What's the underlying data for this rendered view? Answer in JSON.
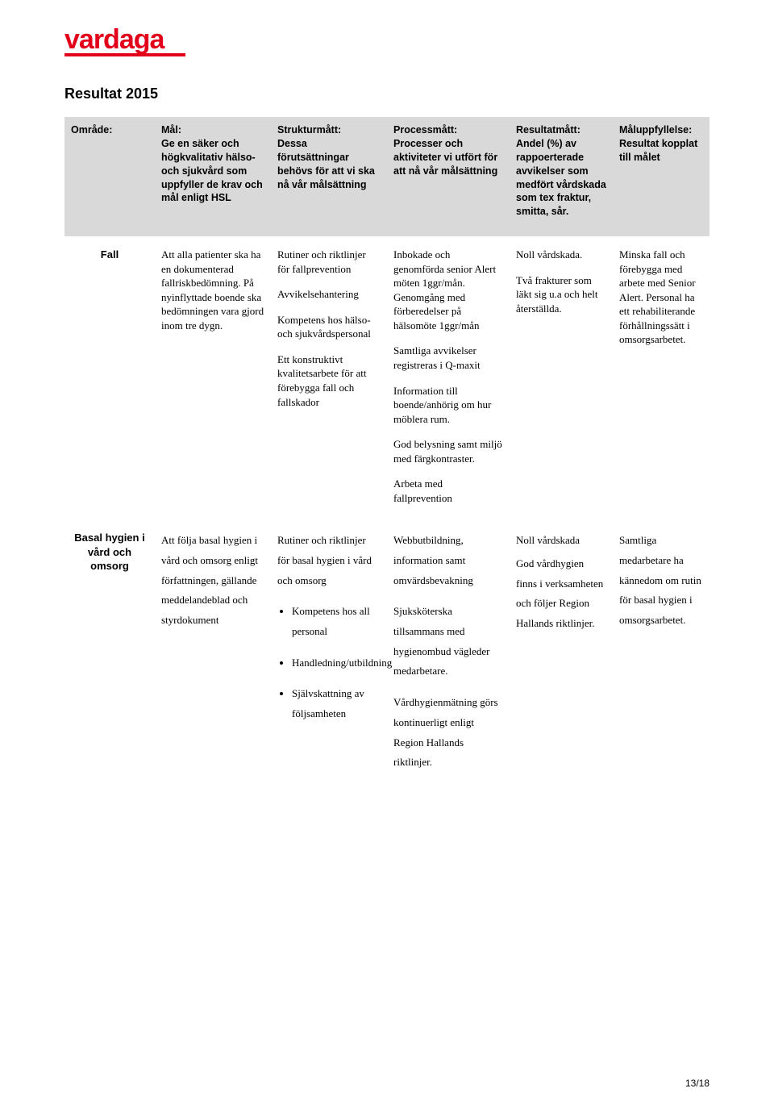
{
  "logo": {
    "text": "vardaga",
    "color": "#e2001a",
    "underline_color": "#e2001a"
  },
  "heading": "Resultat 2015",
  "headers": {
    "area": "Område:",
    "goal": "Mål:\nGe en säker och högkvalitativ hälso- och sjukvård som uppfyller de krav och mål enligt HSL",
    "structure": "Strukturmått:\nDessa förutsättningar behövs för att vi ska nå vår målsättning",
    "process": "Processmått:\nProcesser och aktiviteter vi utfört för att nå vår målsättning",
    "result": "Resultatmått:\nAndel (%) av rappoerterade avvikelser som medfört vårdskada som tex fraktur, smitta, sår.",
    "fulfill": "Måluppfyllelse:\nResultat kopplat till målet"
  },
  "row1": {
    "area": "Fall",
    "goal": "Att alla patienter ska ha en dokumenterad fallriskbedömning. På nyinflyttade boende ska bedömningen vara gjord inom tre dygn.",
    "structure_p1": "Rutiner och riktlinjer för fallprevention",
    "structure_p2": "Avvikelsehantering",
    "structure_p3": "Kompetens hos hälso- och sjukvårdspersonal",
    "structure_p4": "Ett konstruktivt kvalitetsarbete för att förebygga fall och fallskador",
    "process_p1": "Inbokade och genomförda senior Alert möten 1ggr/mån. Genomgång med förberedelser på hälsomöte 1ggr/mån",
    "process_p2": "Samtliga avvikelser registreras i Q-maxit",
    "process_p3": "Information till boende/anhörig om hur möblera rum.",
    "process_p4": "God belysning samt miljö med färgkontraster.",
    "process_p5": "Arbeta med fallprevention",
    "result_p1": "Noll vårdskada.",
    "result_p2": "Två frakturer som läkt sig u.a och helt återställda.",
    "fulfill": "Minska fall och förebygga med arbete med Senior Alert. Personal ha ett rehabiliterande förhållningssätt i omsorgsarbetet."
  },
  "row2": {
    "area": "Basal hygien i vård och omsorg",
    "goal": "Att följa basal hygien i vård och omsorg enligt författningen, gällande meddelandeblad och styrdokument",
    "structure_intro": "Rutiner och riktlinjer för basal hygien i vård och omsorg",
    "structure_b1": "Kompetens hos all personal",
    "structure_b2": "Handledning/utbildning",
    "structure_b3": "Självskattning av följsamheten",
    "process_p1": "Webbutbildning, information samt omvärdsbevakning",
    "process_p2": "Sjuksköterska tillsammans med hygienombud vägleder medarbetare.",
    "process_p3": "Vårdhygienmätning görs kontinuerligt enligt Region Hallands riktlinjer.",
    "result_p1": "Noll vårdskada",
    "result_p2": "God vårdhygien finns i verksamheten och följer Region Hallands riktlinjer.",
    "fulfill": "Samtliga medarbetare ha kännedom om rutin för basal hygien i omsorgsarbetet."
  },
  "page_number": "13/18"
}
